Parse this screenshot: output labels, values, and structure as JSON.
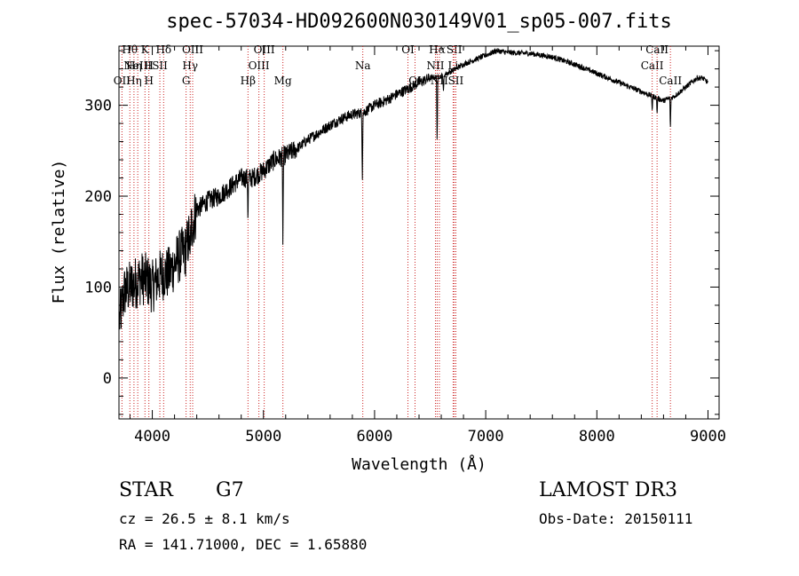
{
  "chart_data": {
    "type": "line",
    "title": "spec-57034-HD092600N030149V01_sp05-007.fits",
    "xlabel": "Wavelength (Å)",
    "ylabel": "Flux (relative)",
    "xlim": [
      3700,
      9100
    ],
    "ylim": [
      -45,
      365
    ],
    "xticks": [
      4000,
      5000,
      6000,
      7000,
      8000,
      9000
    ],
    "yticks": [
      0,
      100,
      200,
      300
    ],
    "spectrum_anchors": [
      [
        3700,
        60
      ],
      [
        3750,
        95
      ],
      [
        3800,
        100
      ],
      [
        3850,
        105
      ],
      [
        3900,
        110
      ],
      [
        3950,
        108
      ],
      [
        4000,
        100
      ],
      [
        4050,
        110
      ],
      [
        4100,
        115
      ],
      [
        4150,
        115
      ],
      [
        4200,
        125
      ],
      [
        4250,
        135
      ],
      [
        4300,
        140
      ],
      [
        4350,
        165
      ],
      [
        4400,
        185
      ],
      [
        4450,
        190
      ],
      [
        4500,
        195
      ],
      [
        4600,
        200
      ],
      [
        4700,
        210
      ],
      [
        4800,
        220
      ],
      [
        4900,
        220
      ],
      [
        5000,
        228
      ],
      [
        5100,
        240
      ],
      [
        5200,
        245
      ],
      [
        5300,
        252
      ],
      [
        5400,
        262
      ],
      [
        5500,
        270
      ],
      [
        5600,
        278
      ],
      [
        5700,
        285
      ],
      [
        5800,
        290
      ],
      [
        5900,
        292
      ],
      [
        6000,
        300
      ],
      [
        6100,
        305
      ],
      [
        6200,
        312
      ],
      [
        6300,
        318
      ],
      [
        6400,
        325
      ],
      [
        6500,
        330
      ],
      [
        6600,
        332
      ],
      [
        6700,
        338
      ],
      [
        6800,
        345
      ],
      [
        6900,
        350
      ],
      [
        7000,
        355
      ],
      [
        7100,
        360
      ],
      [
        7200,
        358
      ],
      [
        7400,
        357
      ],
      [
        7600,
        353
      ],
      [
        7800,
        345
      ],
      [
        8000,
        335
      ],
      [
        8200,
        325
      ],
      [
        8400,
        315
      ],
      [
        8500,
        310
      ],
      [
        8600,
        305
      ],
      [
        8700,
        310
      ],
      [
        8800,
        320
      ],
      [
        8900,
        330
      ],
      [
        8950,
        330
      ],
      [
        9000,
        325
      ]
    ],
    "absorption_features": [
      {
        "x": 4340,
        "depth": 40
      },
      {
        "x": 4861,
        "depth": 45
      },
      {
        "x": 5175,
        "depth": 90
      },
      {
        "x": 5890,
        "depth": 70
      },
      {
        "x": 6563,
        "depth": 75
      },
      {
        "x": 6620,
        "depth": 20
      },
      {
        "x": 8498,
        "depth": 15
      },
      {
        "x": 8542,
        "depth": 18
      },
      {
        "x": 8662,
        "depth": 35
      }
    ],
    "emission_lines": [
      {
        "x": 3727,
        "rows": [
          2
        ],
        "labels": [
          "OII"
        ]
      },
      {
        "x": 3798,
        "rows": [
          0
        ],
        "labels": [
          "Hθ"
        ]
      },
      {
        "x": 3835,
        "rows": [
          1,
          2
        ],
        "labels": [
          "Hη",
          "Hη"
        ]
      },
      {
        "x": 3869,
        "rows": [
          1
        ],
        "labels": [
          "NeIII"
        ]
      },
      {
        "x": 3934,
        "rows": [
          0
        ],
        "labels": [
          "K"
        ]
      },
      {
        "x": 3969,
        "rows": [
          1,
          2
        ],
        "labels": [
          "H",
          "H"
        ]
      },
      {
        "x": 4068,
        "rows": [
          1
        ],
        "labels": [
          "SII"
        ]
      },
      {
        "x": 4102,
        "rows": [
          0
        ],
        "labels": [
          "Hδ"
        ]
      },
      {
        "x": 4304,
        "rows": [
          2
        ],
        "labels": [
          "G"
        ]
      },
      {
        "x": 4341,
        "rows": [
          1
        ],
        "labels": [
          "Hγ"
        ]
      },
      {
        "x": 4363,
        "rows": [
          0
        ],
        "labels": [
          "OIII"
        ]
      },
      {
        "x": 4861,
        "rows": [
          2
        ],
        "labels": [
          "Hβ"
        ]
      },
      {
        "x": 4959,
        "rows": [
          1
        ],
        "labels": [
          "OIII"
        ]
      },
      {
        "x": 5007,
        "rows": [
          0
        ],
        "labels": [
          "OIII"
        ]
      },
      {
        "x": 5175,
        "rows": [
          2
        ],
        "labels": [
          "Mg"
        ]
      },
      {
        "x": 5894,
        "rows": [
          1
        ],
        "labels": [
          "Na"
        ]
      },
      {
        "x": 6300,
        "rows": [
          0
        ],
        "labels": [
          "OI"
        ]
      },
      {
        "x": 6364,
        "rows": [
          2
        ],
        "labels": [
          "OI"
        ]
      },
      {
        "x": 6548,
        "rows": [
          1
        ],
        "labels": [
          "NII"
        ]
      },
      {
        "x": 6563,
        "rows": [
          0
        ],
        "labels": [
          "Hα"
        ]
      },
      {
        "x": 6583,
        "rows": [
          2
        ],
        "labels": [
          "NII"
        ]
      },
      {
        "x": 6707,
        "rows": [
          1
        ],
        "labels": [
          "Li"
        ]
      },
      {
        "x": 6717,
        "rows": [
          0
        ],
        "labels": [
          "SII"
        ]
      },
      {
        "x": 6731,
        "rows": [
          2
        ],
        "labels": [
          "SII"
        ]
      },
      {
        "x": 8498,
        "rows": [
          1
        ],
        "labels": [
          "CaII"
        ]
      },
      {
        "x": 8542,
        "rows": [
          0
        ],
        "labels": [
          "CaII"
        ]
      },
      {
        "x": 8662,
        "rows": [
          2
        ],
        "labels": [
          "CaII"
        ]
      }
    ]
  },
  "info": {
    "object_type": "STAR",
    "subclass": "G7",
    "survey": "LAMOST DR3",
    "cz": "cz = 26.5 ± 8.1 km/s",
    "obs_date": "Obs-Date: 20150111",
    "coords": "RA = 141.71000, DEC =    1.65880"
  }
}
